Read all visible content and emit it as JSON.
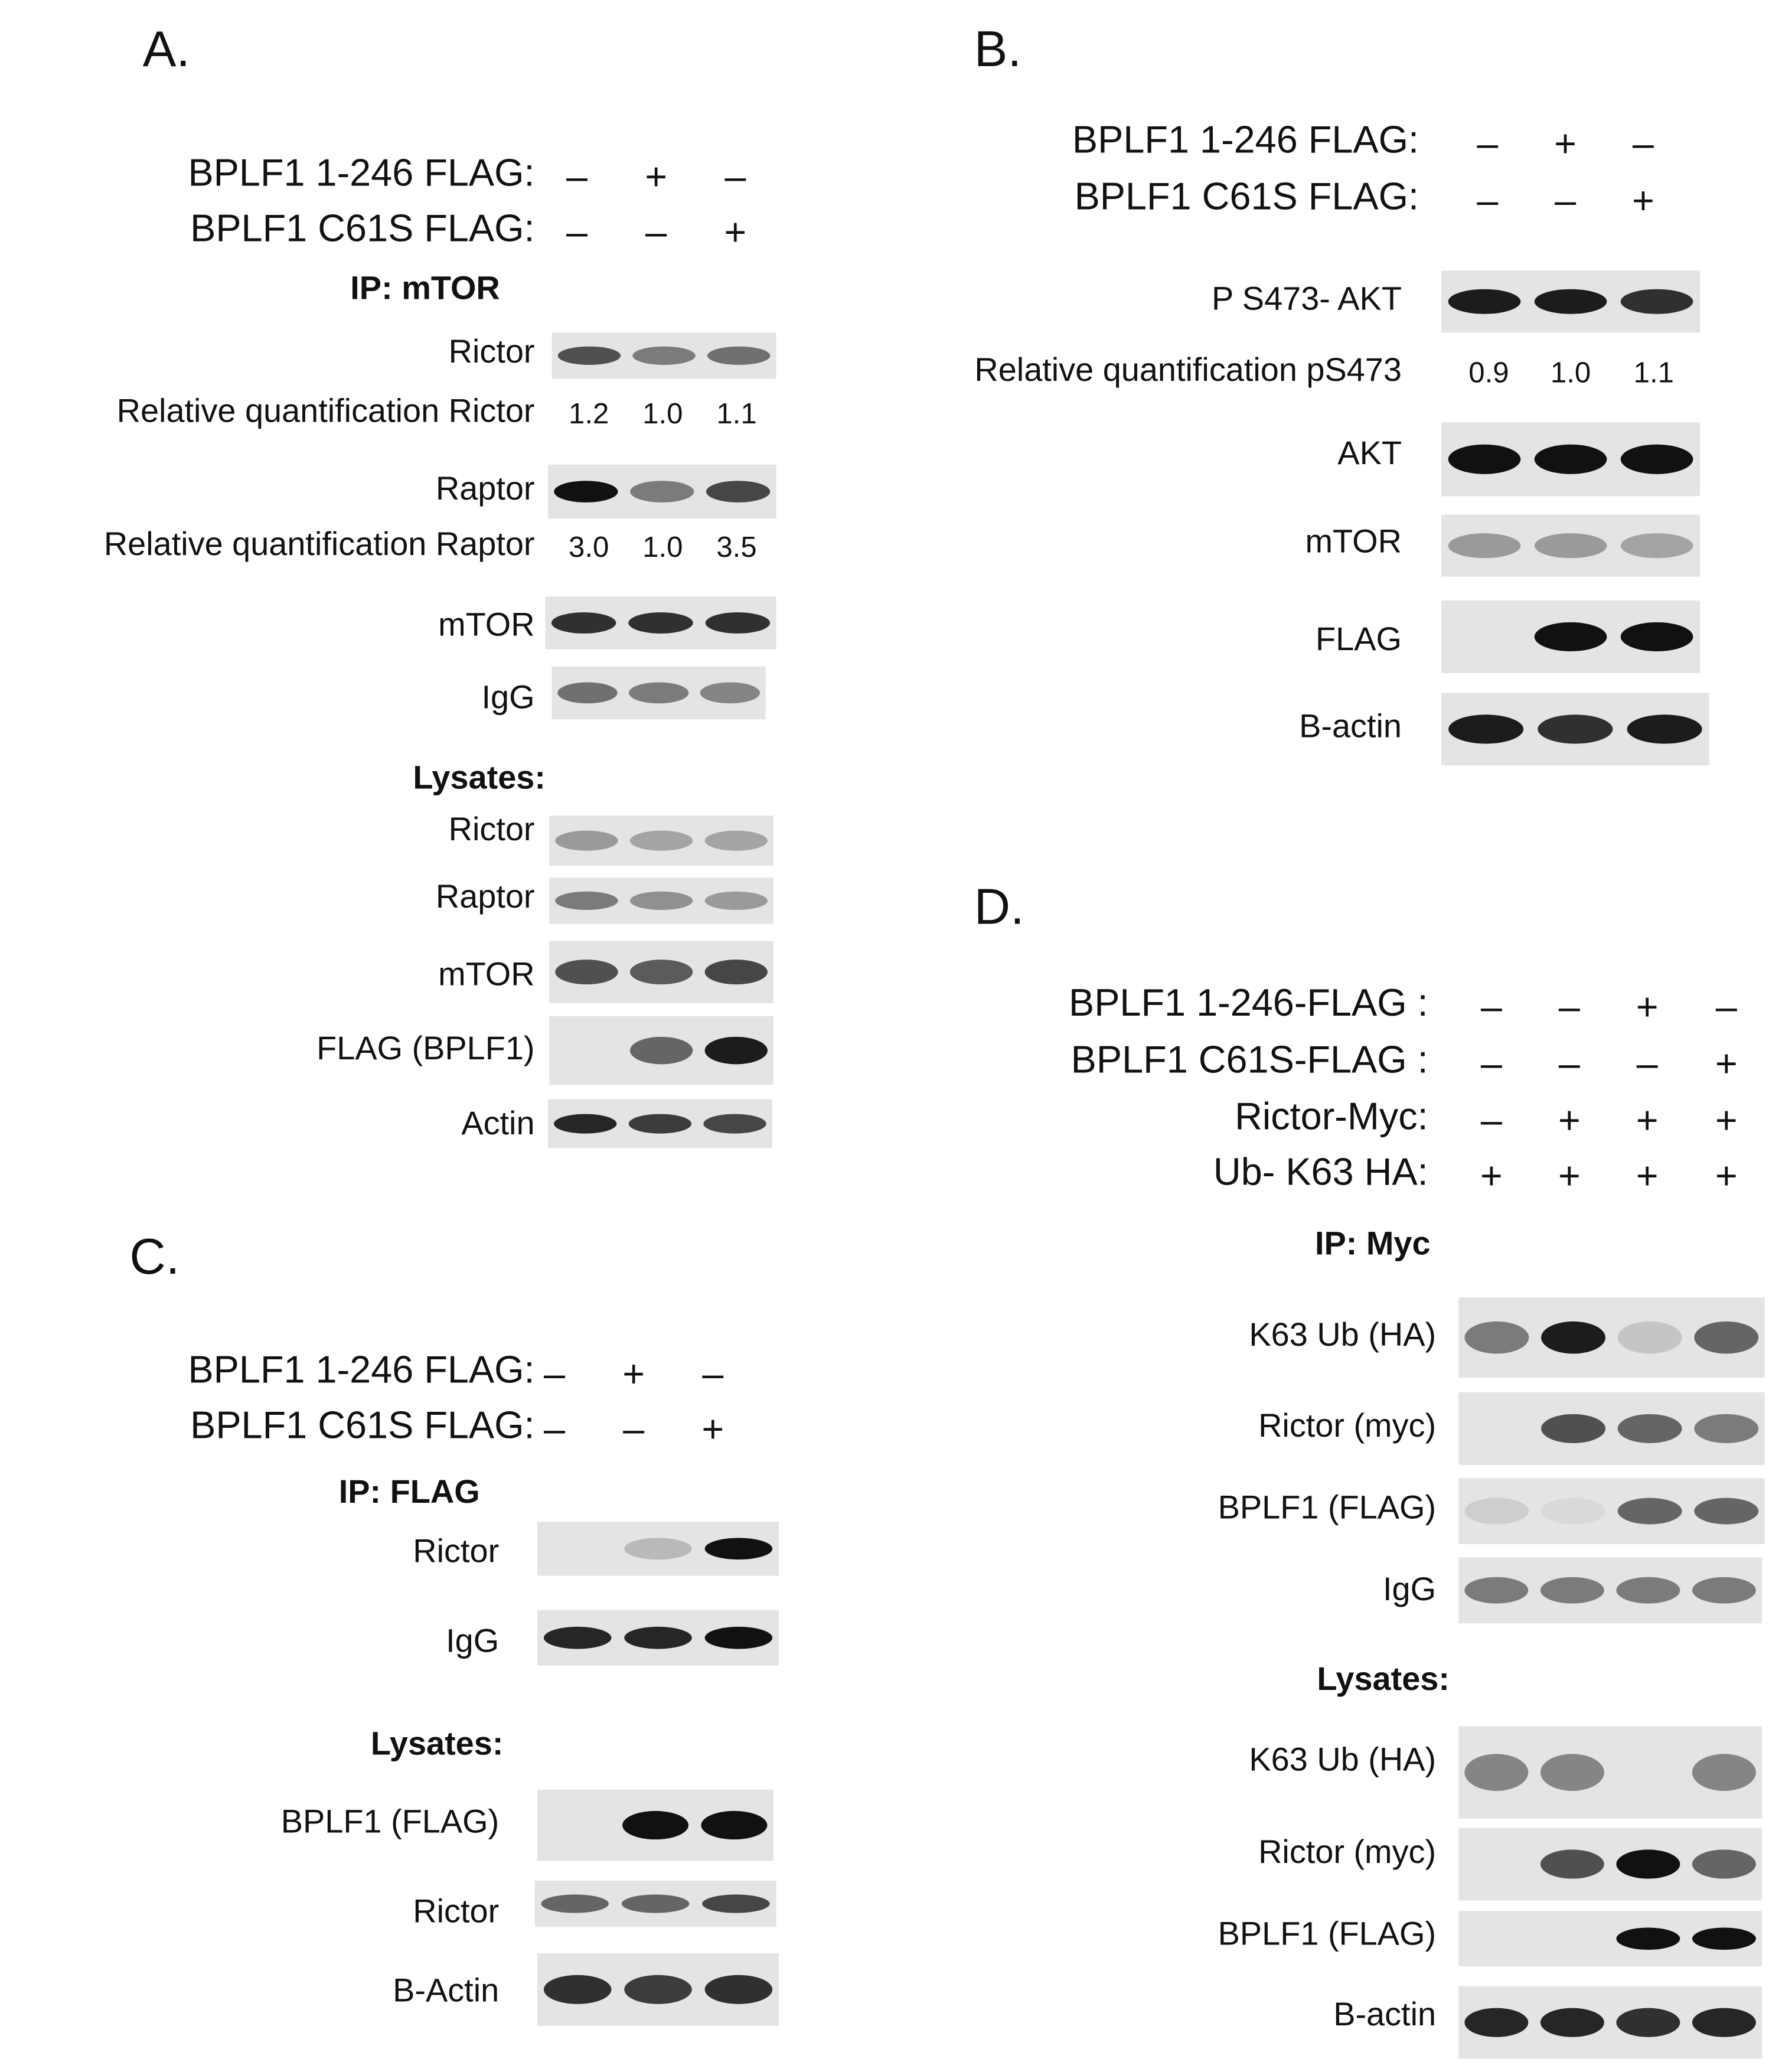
{
  "panels": [
    {
      "letter": "A.",
      "conditions": [
        {
          "label": "BPLF1 1-246 FLAG:",
          "signs": [
            "–",
            "+",
            "–"
          ]
        },
        {
          "label": "BPLF1 C61S FLAG:",
          "signs": [
            "–",
            "–",
            "+"
          ]
        }
      ],
      "sections": [
        {
          "heading": "IP: mTOR",
          "rows": [
            {
              "label": "Rictor"
            },
            {
              "label": "Relative quantification Rictor",
              "values": [
                "1.2",
                "1.0",
                "1.1"
              ]
            },
            {
              "label": "Raptor"
            },
            {
              "label": "Relative quantification Raptor",
              "values": [
                "3.0",
                "1.0",
                "3.5"
              ]
            },
            {
              "label": "mTOR"
            },
            {
              "label": "IgG"
            }
          ]
        },
        {
          "heading": "Lysates:",
          "rows": [
            {
              "label": "Rictor"
            },
            {
              "label": "Raptor"
            },
            {
              "label": "mTOR"
            },
            {
              "label": "FLAG (BPLF1)"
            },
            {
              "label": "Actin"
            }
          ]
        }
      ]
    },
    {
      "letter": "B.",
      "conditions": [
        {
          "label": "BPLF1 1-246 FLAG:",
          "signs": [
            "–",
            "+",
            "–"
          ]
        },
        {
          "label": "BPLF1 C61S FLAG:",
          "signs": [
            "–",
            "–",
            "+"
          ]
        }
      ],
      "sections": [
        {
          "rows": [
            {
              "label": "P S473- AKT"
            },
            {
              "label": "Relative quantification pS473",
              "values": [
                "0.9",
                "1.0",
                "1.1"
              ]
            },
            {
              "label": "AKT"
            },
            {
              "label": "mTOR"
            },
            {
              "label": "FLAG"
            },
            {
              "label": "B-actin"
            }
          ]
        }
      ]
    },
    {
      "letter": "C.",
      "conditions": [
        {
          "label": "BPLF1 1-246 FLAG:",
          "signs": [
            "–",
            "+",
            "–"
          ]
        },
        {
          "label": "BPLF1 C61S FLAG:",
          "signs": [
            "–",
            "–",
            "+"
          ]
        }
      ],
      "sections": [
        {
          "heading": "IP: FLAG",
          "rows": [
            {
              "label": "Rictor"
            },
            {
              "label": "IgG"
            }
          ]
        },
        {
          "heading": "Lysates:",
          "rows": [
            {
              "label": "BPLF1 (FLAG)"
            },
            {
              "label": "Rictor"
            },
            {
              "label": "B-Actin"
            }
          ]
        }
      ]
    },
    {
      "letter": "D.",
      "conditions": [
        {
          "label": "BPLF1 1-246-FLAG :",
          "signs": [
            "–",
            "–",
            "+",
            "–"
          ]
        },
        {
          "label": "BPLF1 C61S-FLAG :",
          "signs": [
            "–",
            "–",
            "–",
            "+"
          ]
        },
        {
          "label": "Rictor-Myc:",
          "signs": [
            "–",
            "+",
            "+",
            "+"
          ]
        },
        {
          "label": "Ub- K63 HA:",
          "signs": [
            "+",
            "+",
            "+",
            "+"
          ]
        }
      ],
      "sections": [
        {
          "heading": "IP: Myc",
          "rows": [
            {
              "label": "K63 Ub (HA)"
            },
            {
              "label": "Rictor (myc)"
            },
            {
              "label": "BPLF1 (FLAG)"
            },
            {
              "label": "IgG"
            }
          ]
        },
        {
          "heading": "Lysates:",
          "rows": [
            {
              "label": "K63 Ub (HA)"
            },
            {
              "label": "Rictor (myc)"
            },
            {
              "label": "BPLF1 (FLAG)"
            },
            {
              "label": "B-actin"
            }
          ]
        }
      ]
    }
  ]
}
